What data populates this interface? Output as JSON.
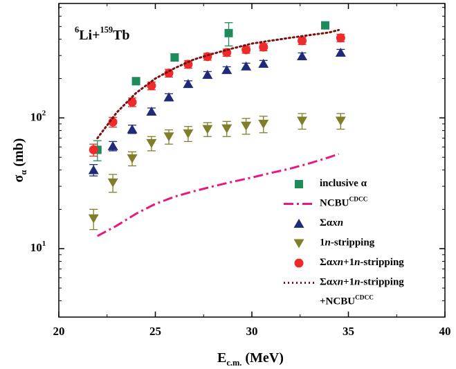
{
  "chart_data": {
    "type": "scatter",
    "annotation": [
      {
        "t": "6",
        "s": "sup"
      },
      {
        "t": "Li+"
      },
      {
        "t": "159",
        "s": "sup"
      },
      {
        "t": "Tb"
      }
    ],
    "x_label": [
      {
        "t": "E"
      },
      {
        "t": "c.m.",
        "s": "sub"
      },
      {
        "t": "   (MeV)"
      }
    ],
    "y_label": [
      {
        "t": "σ"
      },
      {
        "t": "α",
        "s": "sub"
      },
      {
        "t": " (mb)"
      }
    ],
    "xlim": [
      20,
      40
    ],
    "xticks": [
      20,
      25,
      30,
      35,
      40
    ],
    "ylim": [
      3,
      750
    ],
    "yticks": [
      {
        "value": 10,
        "label": "10",
        "exp": "1"
      },
      {
        "value": 100,
        "label": "10",
        "exp": "2"
      }
    ],
    "log_y": true,
    "series": [
      {
        "name": [
          {
            "t": "inclusive α"
          }
        ],
        "marker": "square",
        "color": "#1e8c5a",
        "x": [
          22.0,
          24.0,
          26.0,
          28.8,
          33.8
        ],
        "values": [
          57,
          191,
          290,
          445,
          510
        ],
        "errors": [
          10,
          12,
          18,
          90,
          30
        ]
      },
      {
        "name": [
          {
            "t": "NCBU"
          },
          {
            "t": "CDCC",
            "s": "sup"
          }
        ],
        "marker": "dashdot",
        "color": "#e8197c",
        "x": [
          22,
          23,
          24,
          25,
          26,
          27,
          28,
          29,
          30,
          31,
          32,
          33,
          34,
          34.5
        ],
        "values": [
          12.5,
          15,
          18.5,
          22,
          25,
          27.5,
          30,
          32.5,
          35,
          38,
          41,
          45,
          50,
          53
        ]
      },
      {
        "name": [
          {
            "t": "Σα"
          },
          {
            "t": "xn",
            "s": "i"
          }
        ],
        "marker": "triangle-up",
        "color": "#1f2a7a",
        "x": [
          21.8,
          22.8,
          23.8,
          24.8,
          25.7,
          26.7,
          27.7,
          28.7,
          29.7,
          30.6,
          32.6,
          34.6
        ],
        "values": [
          40,
          61,
          82,
          112,
          144,
          182,
          214,
          233,
          248,
          260,
          297,
          316
        ],
        "errors": [
          4,
          5,
          6,
          7,
          9,
          10,
          12,
          13,
          14,
          15,
          17,
          18
        ]
      },
      {
        "name": [
          {
            "t": "1"
          },
          {
            "t": "n",
            "s": "i"
          },
          {
            "t": "-stripping"
          }
        ],
        "marker": "triangle-down",
        "color": "#7f7f2a",
        "x": [
          21.8,
          22.8,
          23.8,
          24.8,
          25.7,
          26.7,
          27.7,
          28.7,
          29.7,
          30.6,
          32.6,
          34.6
        ],
        "values": [
          17,
          32,
          49,
          64,
          72,
          76,
          82,
          83,
          87,
          90,
          95,
          95
        ],
        "errors": [
          3,
          5,
          6,
          8,
          9,
          10,
          10,
          11,
          12,
          13,
          13,
          13
        ]
      },
      {
        "name": [
          {
            "t": "Σα"
          },
          {
            "t": "xn",
            "s": "i"
          },
          {
            "t": "+1"
          },
          {
            "t": "n",
            "s": "i"
          },
          {
            "t": "-stripping"
          }
        ],
        "marker": "circle",
        "color": "#ee2a2a",
        "x": [
          21.8,
          22.8,
          23.8,
          24.8,
          25.7,
          26.7,
          27.7,
          28.7,
          29.7,
          30.6,
          32.6,
          34.6
        ],
        "values": [
          57,
          93,
          132,
          176,
          220,
          257,
          294,
          316,
          332,
          348,
          389,
          409
        ],
        "errors": [
          6,
          8,
          10,
          12,
          15,
          17,
          18,
          20,
          20,
          22,
          25,
          27
        ]
      },
      {
        "name": [
          {
            "t": "Σα"
          },
          {
            "t": "xn",
            "s": "i"
          },
          {
            "t": "+1"
          },
          {
            "t": "n",
            "s": "i"
          },
          {
            "t": "-stripping"
          },
          {
            "t": "+NCBU",
            "nl": true
          },
          {
            "t": "CDCC",
            "s": "sup"
          }
        ],
        "marker": "dotted",
        "color": "#7a1010",
        "x": [
          22,
          23,
          24,
          25,
          26,
          27,
          28,
          29,
          30,
          31,
          32,
          33,
          34,
          34.5
        ],
        "values": [
          70,
          110,
          155,
          200,
          240,
          280,
          310,
          340,
          370,
          390,
          410,
          430,
          450,
          470
        ]
      }
    ]
  }
}
